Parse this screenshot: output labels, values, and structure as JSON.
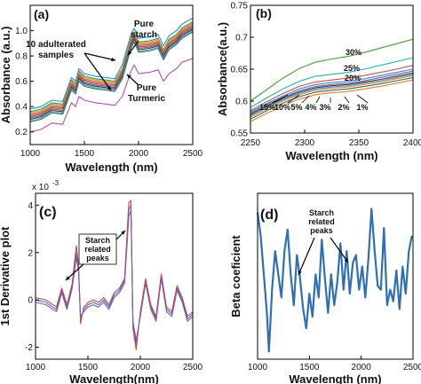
{
  "chart_data": [
    {
      "panel": "(a)",
      "type": "line",
      "xlabel": "Wavelength (nm)",
      "ylabel": "Absorbance (a.u.)",
      "xlim": [
        1000,
        2500
      ],
      "ylim": [
        0.1,
        1.2
      ],
      "xticks": [
        "1000",
        "1500",
        "2000",
        "2500"
      ],
      "yticks": [
        "0.2",
        "0.4",
        "0.6",
        "0.8",
        "1.0"
      ],
      "grid": false,
      "annotations": [
        "Pure starch",
        "10 adulterated samples",
        "Pure Turmeric"
      ],
      "x": [
        1000,
        1100,
        1200,
        1300,
        1380,
        1420,
        1450,
        1500,
        1600,
        1700,
        1780,
        1850,
        1930,
        1960,
        2000,
        2100,
        2180,
        2230,
        2280,
        2350,
        2400,
        2500
      ],
      "series": [
        {
          "color": "#2a8ec7",
          "values": [
            0.38,
            0.4,
            0.45,
            0.44,
            0.63,
            0.6,
            0.7,
            0.66,
            0.64,
            0.63,
            0.62,
            0.73,
            0.97,
            1.02,
            0.94,
            0.95,
            0.97,
            0.88,
            0.96,
            1.0,
            1.05,
            1.1
          ]
        },
        {
          "color": "#2e9a5a",
          "values": [
            0.36,
            0.38,
            0.43,
            0.42,
            0.61,
            0.58,
            0.68,
            0.64,
            0.62,
            0.61,
            0.6,
            0.7,
            0.94,
            0.99,
            0.91,
            0.92,
            0.94,
            0.85,
            0.93,
            0.97,
            1.02,
            1.07
          ]
        },
        {
          "color": "#c9a227",
          "values": [
            0.35,
            0.37,
            0.42,
            0.41,
            0.6,
            0.57,
            0.67,
            0.63,
            0.61,
            0.6,
            0.59,
            0.69,
            0.93,
            0.98,
            0.9,
            0.91,
            0.93,
            0.84,
            0.92,
            0.96,
            1.01,
            1.06
          ]
        },
        {
          "color": "#e07b39",
          "values": [
            0.34,
            0.36,
            0.41,
            0.4,
            0.59,
            0.56,
            0.66,
            0.62,
            0.6,
            0.59,
            0.58,
            0.68,
            0.92,
            0.97,
            0.89,
            0.9,
            0.92,
            0.83,
            0.91,
            0.95,
            1.0,
            1.05
          ]
        },
        {
          "color": "#d04a4a",
          "values": [
            0.33,
            0.35,
            0.4,
            0.39,
            0.58,
            0.55,
            0.65,
            0.61,
            0.59,
            0.58,
            0.57,
            0.67,
            0.91,
            0.96,
            0.88,
            0.89,
            0.91,
            0.82,
            0.9,
            0.94,
            0.99,
            1.04
          ]
        },
        {
          "color": "#7a5ca8",
          "values": [
            0.32,
            0.34,
            0.39,
            0.38,
            0.57,
            0.54,
            0.64,
            0.6,
            0.58,
            0.57,
            0.56,
            0.66,
            0.9,
            0.95,
            0.87,
            0.88,
            0.9,
            0.81,
            0.89,
            0.93,
            0.98,
            1.03
          ]
        },
        {
          "color": "#8b5a2b",
          "values": [
            0.31,
            0.33,
            0.38,
            0.37,
            0.56,
            0.53,
            0.63,
            0.59,
            0.57,
            0.56,
            0.55,
            0.65,
            0.89,
            0.94,
            0.86,
            0.87,
            0.89,
            0.8,
            0.88,
            0.92,
            0.97,
            1.02
          ]
        },
        {
          "color": "#3a3a3a",
          "values": [
            0.3,
            0.32,
            0.37,
            0.36,
            0.55,
            0.52,
            0.62,
            0.58,
            0.56,
            0.55,
            0.54,
            0.64,
            0.88,
            0.93,
            0.85,
            0.86,
            0.88,
            0.79,
            0.87,
            0.91,
            0.96,
            1.01
          ]
        },
        {
          "color": "#5ab4e0",
          "values": [
            0.29,
            0.31,
            0.36,
            0.35,
            0.54,
            0.51,
            0.61,
            0.57,
            0.55,
            0.54,
            0.53,
            0.63,
            0.87,
            0.92,
            0.84,
            0.85,
            0.87,
            0.78,
            0.86,
            0.9,
            0.95,
            1.0
          ]
        },
        {
          "color": "#2d6f5e",
          "values": [
            0.28,
            0.3,
            0.35,
            0.34,
            0.53,
            0.5,
            0.6,
            0.56,
            0.54,
            0.53,
            0.52,
            0.62,
            0.86,
            0.91,
            0.83,
            0.84,
            0.86,
            0.77,
            0.85,
            0.89,
            0.94,
            0.99
          ]
        },
        {
          "color": "#b04fb0",
          "values": [
            0.2,
            0.22,
            0.27,
            0.26,
            0.43,
            0.4,
            0.48,
            0.45,
            0.43,
            0.42,
            0.41,
            0.48,
            0.68,
            0.73,
            0.66,
            0.67,
            0.69,
            0.6,
            0.66,
            0.7,
            0.75,
            0.78
          ]
        }
      ]
    },
    {
      "panel": "(b)",
      "type": "line",
      "xlabel": "Wavelength (nm)",
      "ylabel": "Absorbance(a.u.)",
      "xlim": [
        2250,
        2400
      ],
      "ylim": [
        0.55,
        0.75
      ],
      "xticks": [
        "2250",
        "2300",
        "2350",
        "2400"
      ],
      "yticks": [
        "0.55",
        "0.6",
        "0.65",
        "0.7",
        "0.75"
      ],
      "grid": false,
      "x": [
        2250,
        2265,
        2280,
        2295,
        2310,
        2325,
        2340,
        2355,
        2370,
        2385,
        2400
      ],
      "series": [
        {
          "name": "30%",
          "color": "#4a9a3a",
          "values": [
            0.6,
            0.618,
            0.636,
            0.651,
            0.661,
            0.666,
            0.67,
            0.676,
            0.683,
            0.69,
            0.697
          ]
        },
        {
          "name": "25%",
          "color": "#1fb3a8",
          "values": [
            0.59,
            0.605,
            0.619,
            0.631,
            0.639,
            0.642,
            0.645,
            0.65,
            0.656,
            0.662,
            0.668
          ]
        },
        {
          "name": "20%",
          "color": "#d04a4a",
          "values": [
            0.585,
            0.599,
            0.612,
            0.623,
            0.63,
            0.633,
            0.636,
            0.64,
            0.645,
            0.65,
            0.656
          ]
        },
        {
          "name": "15%",
          "color": "#2a8ec7",
          "values": [
            0.583,
            0.596,
            0.608,
            0.619,
            0.626,
            0.629,
            0.631,
            0.635,
            0.64,
            0.645,
            0.65
          ]
        },
        {
          "name": "10%",
          "color": "#7a5ca8",
          "values": [
            0.581,
            0.594,
            0.606,
            0.616,
            0.623,
            0.626,
            0.628,
            0.632,
            0.637,
            0.642,
            0.647
          ]
        },
        {
          "name": "5%",
          "color": "#3a3a3a",
          "values": [
            0.579,
            0.592,
            0.604,
            0.614,
            0.621,
            0.624,
            0.626,
            0.63,
            0.634,
            0.639,
            0.644
          ]
        },
        {
          "name": "4%",
          "color": "#6c7fcf",
          "values": [
            0.577,
            0.59,
            0.602,
            0.612,
            0.619,
            0.622,
            0.624,
            0.628,
            0.632,
            0.637,
            0.642
          ]
        },
        {
          "name": "3%",
          "color": "#c9a227",
          "values": [
            0.575,
            0.588,
            0.6,
            0.61,
            0.617,
            0.62,
            0.622,
            0.626,
            0.63,
            0.635,
            0.64
          ]
        },
        {
          "name": "2%",
          "color": "#2d6f5e",
          "values": [
            0.572,
            0.585,
            0.597,
            0.607,
            0.614,
            0.617,
            0.619,
            0.623,
            0.627,
            0.632,
            0.637
          ]
        },
        {
          "name": "1%",
          "color": "#e07b39",
          "values": [
            0.568,
            0.581,
            0.593,
            0.603,
            0.61,
            0.613,
            0.615,
            0.619,
            0.623,
            0.628,
            0.633
          ]
        }
      ]
    },
    {
      "panel": "(c)",
      "type": "line",
      "xlabel": "Wavelength(nm)",
      "ylabel": "1st Derivative plot",
      "scale_label": "x 10",
      "scale_exp": "-3",
      "xlim": [
        1000,
        2500
      ],
      "ylim": [
        -2.5,
        4.5
      ],
      "xticks": [
        "1000",
        "1500",
        "2000",
        "2500"
      ],
      "yticks": [
        "-2",
        "0",
        "2",
        "4"
      ],
      "grid": false,
      "annotations": [
        "Starch related peaks"
      ],
      "x": [
        1000,
        1100,
        1200,
        1250,
        1300,
        1350,
        1390,
        1410,
        1430,
        1460,
        1500,
        1550,
        1600,
        1650,
        1700,
        1750,
        1800,
        1850,
        1890,
        1910,
        1930,
        1960,
        2000,
        2050,
        2100,
        2150,
        2200,
        2250,
        2300,
        2350,
        2400,
        2450,
        2500
      ],
      "series": [
        {
          "color": "#3a6fc0",
          "values": [
            0.0,
            -0.1,
            -0.4,
            0.4,
            -0.3,
            0.6,
            2.0,
            1.4,
            -0.8,
            -0.4,
            -0.2,
            -0.1,
            -0.2,
            0.0,
            -0.3,
            0.2,
            0.4,
            0.8,
            3.8,
            4.0,
            -1.0,
            -1.9,
            -0.6,
            0.8,
            -0.3,
            -0.8,
            1.0,
            -0.4,
            -0.6,
            0.5,
            0.0,
            -0.8,
            -0.6
          ]
        },
        {
          "color": "#c8464f",
          "values": [
            0.1,
            0.0,
            -0.3,
            0.5,
            -0.2,
            0.7,
            2.3,
            1.5,
            -1.0,
            -0.3,
            -0.1,
            0.0,
            -0.1,
            0.1,
            -0.2,
            0.3,
            0.5,
            0.9,
            4.1,
            4.2,
            -1.2,
            -2.1,
            -0.5,
            0.9,
            -0.2,
            -0.7,
            1.1,
            -0.3,
            -0.5,
            0.6,
            0.1,
            -0.7,
            -0.5
          ]
        },
        {
          "color": "#7a5ca8",
          "values": [
            -0.1,
            -0.2,
            -0.5,
            0.3,
            -0.4,
            0.5,
            1.8,
            1.2,
            -0.7,
            -0.5,
            -0.3,
            -0.2,
            -0.3,
            -0.1,
            -0.4,
            0.1,
            0.3,
            0.7,
            3.5,
            3.8,
            -0.9,
            -1.7,
            -0.7,
            0.7,
            -0.4,
            -0.9,
            0.9,
            -0.5,
            -0.7,
            0.4,
            -0.1,
            -0.9,
            -0.7
          ]
        }
      ]
    },
    {
      "panel": "(d)",
      "type": "line",
      "xlabel": "Wavelength (nm)",
      "ylabel": "Beta coeficient",
      "xlim": [
        1000,
        2500
      ],
      "ylim": [
        -100,
        115
      ],
      "xticks": [
        "1000",
        "1500",
        "2000",
        "2500"
      ],
      "yticks": [],
      "grid": false,
      "annotations": [
        "Starch related peaks"
      ],
      "x": [
        1000,
        1030,
        1060,
        1090,
        1110,
        1140,
        1170,
        1200,
        1230,
        1260,
        1290,
        1320,
        1350,
        1380,
        1410,
        1440,
        1470,
        1500,
        1530,
        1560,
        1590,
        1620,
        1650,
        1680,
        1710,
        1740,
        1770,
        1800,
        1830,
        1860,
        1890,
        1920,
        1950,
        1980,
        2010,
        2040,
        2070,
        2100,
        2130,
        2160,
        2190,
        2220,
        2250,
        2280,
        2310,
        2340,
        2370,
        2400,
        2430,
        2460,
        2490
      ],
      "series": [
        {
          "color": "#2e6fb5",
          "values": [
            90,
            60,
            10,
            -40,
            -90,
            -10,
            40,
            10,
            -20,
            40,
            68,
            10,
            -30,
            35,
            5,
            -35,
            -60,
            -15,
            -45,
            10,
            -20,
            55,
            5,
            -40,
            10,
            -30,
            0,
            50,
            -10,
            40,
            -15,
            25,
            35,
            -10,
            20,
            -20,
            30,
            95,
            40,
            -5,
            -10,
            70,
            -30,
            -10,
            -25,
            15,
            -35,
            20,
            -15,
            40,
            60
          ]
        }
      ]
    }
  ]
}
